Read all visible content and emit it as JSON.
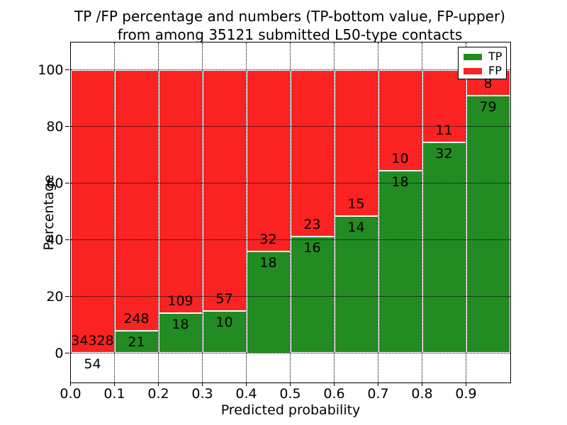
{
  "title": {
    "line1": "TP /FP percentage and numbers (TP-bottom value, FP-upper)",
    "line2": "from among 35121 submitted L50-type contacts"
  },
  "y_axis": {
    "label": "Percentage",
    "ticks": [
      0,
      20,
      40,
      60,
      80,
      100
    ]
  },
  "x_axis": {
    "label": "Predicted probability",
    "ticks": [
      "0.0",
      "0.1",
      "0.2",
      "0.3",
      "0.4",
      "0.5",
      "0.6",
      "0.7",
      "0.8",
      "0.9"
    ]
  },
  "legend": {
    "items": [
      {
        "label": "TP",
        "color": "#228b22"
      },
      {
        "label": "FP",
        "color": "#fb2222"
      }
    ]
  },
  "colors": {
    "tp": "#228b22",
    "fp": "#fb2222",
    "grid": "#000000",
    "text": "#000000",
    "background": "#ffffff",
    "bar_edge": "#ffffff"
  },
  "chart_data": {
    "type": "bar",
    "stacked": true,
    "normalized_to_percent": 100,
    "bin_edges": [
      0.0,
      0.1,
      0.2,
      0.3,
      0.4,
      0.5,
      0.6,
      0.7,
      0.8,
      0.9,
      1.0
    ],
    "series": [
      {
        "name": "TP",
        "color": "#228b22",
        "counts": [
          54,
          21,
          18,
          10,
          18,
          16,
          14,
          18,
          32,
          79
        ]
      },
      {
        "name": "FP",
        "color": "#fb2222",
        "counts": [
          34328,
          248,
          109,
          57,
          32,
          23,
          15,
          10,
          11,
          8
        ]
      }
    ],
    "total_contacts": 35121,
    "title": "TP /FP percentage and numbers (TP-bottom value, FP-upper) from among 35121 submitted L50-type contacts",
    "xlabel": "Predicted probability",
    "ylabel": "Percentage",
    "xlim": [
      0.0,
      1.0
    ],
    "ylim": [
      -10.25,
      109.75
    ],
    "grid": "dotted",
    "legend_position": "upper right",
    "bar_label_rule": "TP count printed just below each green segment top, FP count just above it"
  }
}
